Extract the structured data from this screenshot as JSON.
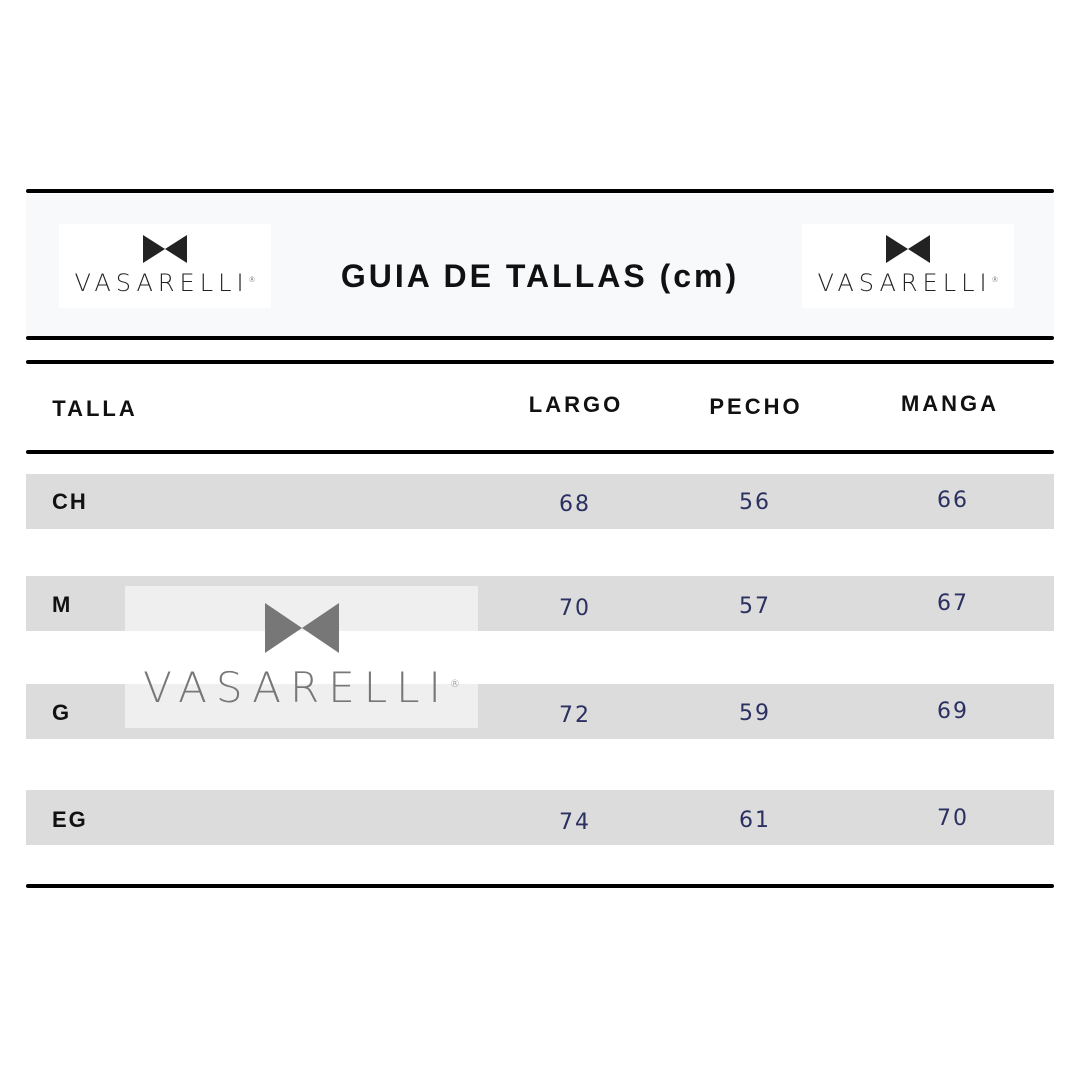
{
  "header": {
    "title": "GUIA DE TALLAS (cm)",
    "brand": "VASARELLI",
    "registered": "®"
  },
  "table": {
    "columns": [
      "TALLA",
      "LARGO",
      "PECHO",
      "MANGA"
    ],
    "rows": [
      {
        "talla": "CH",
        "largo": "68",
        "pecho": "56",
        "manga": "66"
      },
      {
        "talla": "M",
        "largo": "70",
        "pecho": "57",
        "manga": "67"
      },
      {
        "talla": "G",
        "largo": "72",
        "pecho": "59",
        "manga": "69"
      },
      {
        "talla": "EG",
        "largo": "74",
        "pecho": "61",
        "manga": "70"
      }
    ]
  },
  "colors": {
    "row_bg": "#dcdcdc",
    "number": "#2a3060",
    "text": "#111111"
  }
}
